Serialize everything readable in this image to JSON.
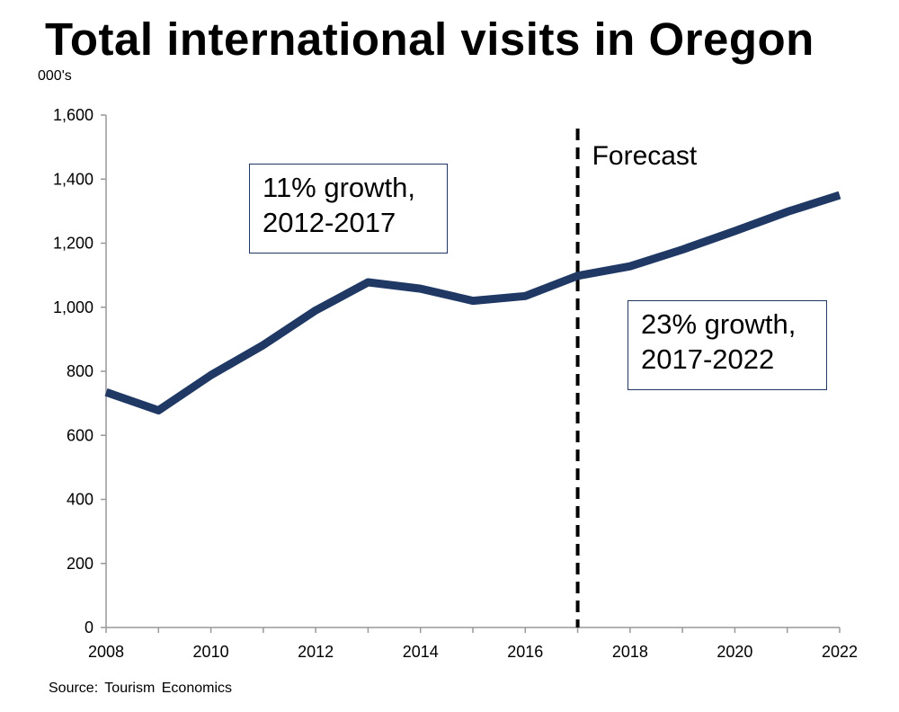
{
  "chart_data": {
    "type": "line",
    "title": "Total international visits in Oregon",
    "ylabel": "000's",
    "xlabel": "",
    "x": [
      2008,
      2009,
      2010,
      2011,
      2012,
      2013,
      2014,
      2015,
      2016,
      2017,
      2018,
      2019,
      2020,
      2021,
      2022
    ],
    "series": [
      {
        "values": [
          735,
          678,
          788,
          882,
          990,
          1078,
          1058,
          1020,
          1035,
          1098,
          1128,
          1180,
          1238,
          1298,
          1350
        ]
      }
    ],
    "xlim": [
      2008,
      2022
    ],
    "ylim": [
      0,
      1600
    ],
    "x_ticks": [
      "2008",
      "2010",
      "2012",
      "2014",
      "2016",
      "2018",
      "2020",
      "2022"
    ],
    "y_ticks": [
      "0",
      "200",
      "400",
      "600",
      "800",
      "1,000",
      "1,200",
      "1,400",
      "1,600"
    ],
    "grid": false,
    "line_color": "#1f3864",
    "forecast_start": 2017,
    "forecast_label": "Forecast",
    "annotations": [
      {
        "lines": [
          "11% growth,",
          "2012-2017"
        ]
      },
      {
        "lines": [
          "23% growth,",
          "2017-2022"
        ]
      }
    ],
    "source": "Source: Tourism Economics"
  }
}
